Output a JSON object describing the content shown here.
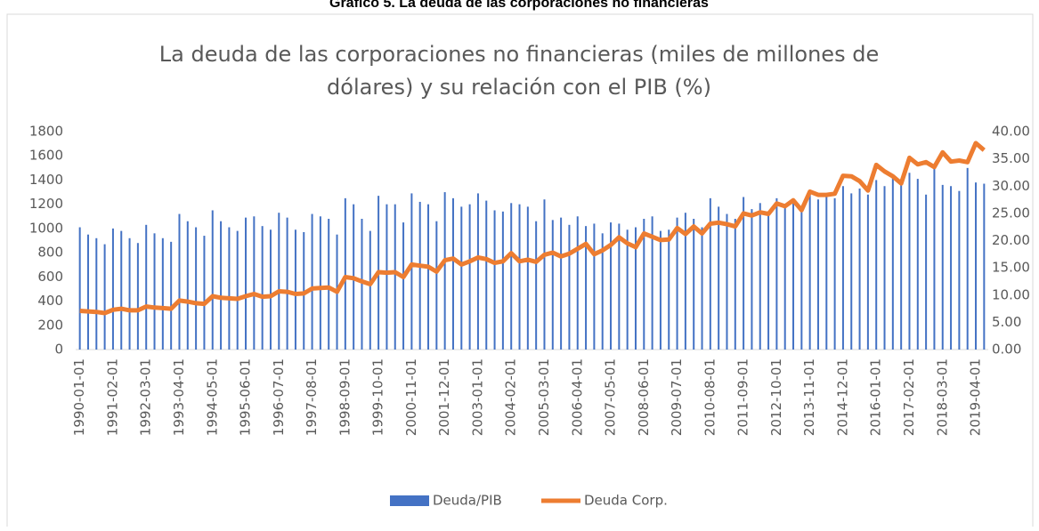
{
  "chart_data": {
    "type": "bar_line",
    "caption": "Gráfico 5. La deuda de las corporaciones no financieras",
    "title": [
      "La deuda de las corporaciones no financieras (miles de millones de",
      "dólares) y su relación con el PIB (%)"
    ],
    "categories": [
      "1990-01-01",
      null,
      null,
      null,
      "1991-02-01",
      null,
      null,
      null,
      "1992-03-01",
      null,
      null,
      null,
      "1993-04-01",
      null,
      null,
      null,
      "1994-05-01",
      null,
      null,
      null,
      "1995-06-01",
      null,
      null,
      null,
      "1996-07-01",
      null,
      null,
      null,
      "1997-08-01",
      null,
      null,
      null,
      "1998-09-01",
      null,
      null,
      null,
      "1999-10-01",
      null,
      null,
      null,
      "2000-11-01",
      null,
      null,
      null,
      "2001-12-01",
      null,
      null,
      null,
      "2003-01-01",
      null,
      null,
      null,
      "2004-02-01",
      null,
      null,
      null,
      "2005-03-01",
      null,
      null,
      null,
      "2006-04-01",
      null,
      null,
      null,
      "2007-05-01",
      null,
      null,
      null,
      "2008-06-01",
      null,
      null,
      null,
      "2009-07-01",
      null,
      null,
      null,
      "2010-08-01",
      null,
      null,
      null,
      "2011-09-01",
      null,
      null,
      null,
      "2012-10-01",
      null,
      null,
      null,
      "2013-11-01",
      null,
      null,
      null,
      "2014-12-01",
      null,
      null,
      null,
      "2016-01-01",
      null,
      null,
      null,
      "2017-02-01",
      null,
      null,
      null,
      "2018-03-01",
      null,
      null,
      null,
      "2019-04-01",
      null
    ],
    "series": [
      {
        "name": "Deuda/PIB",
        "color": "#4472c4",
        "kind": "bar",
        "values": [
          1010,
          950,
          920,
          870,
          1000,
          980,
          920,
          880,
          1030,
          960,
          920,
          890,
          1120,
          1060,
          1010,
          940,
          1150,
          1060,
          1010,
          980,
          1090,
          1100,
          1020,
          990,
          1130,
          1090,
          990,
          970,
          1120,
          1100,
          1080,
          950,
          1250,
          1200,
          1080,
          980,
          1270,
          1200,
          1200,
          1050,
          1290,
          1220,
          1200,
          1060,
          1300,
          1250,
          1180,
          1200,
          1290,
          1230,
          1150,
          1140,
          1210,
          1200,
          1180,
          1060,
          1240,
          1070,
          1090,
          1030,
          1100,
          1020,
          1040,
          960,
          1050,
          1040,
          990,
          1010,
          1080,
          1100,
          980,
          990,
          1090,
          1130,
          1080,
          1010,
          1250,
          1180,
          1120,
          1080,
          1260,
          1160,
          1210,
          1120,
          1250,
          1200,
          1210,
          1150,
          1290,
          1240,
          1260,
          1250,
          1350,
          1290,
          1330,
          1280,
          1400,
          1350,
          1420,
          1370,
          1460,
          1410,
          1280,
          1500,
          1360,
          1350,
          1310,
          1500,
          1380,
          1370
        ]
      },
      {
        "name": "Deuda Corp.",
        "color": "#ed7d31",
        "kind": "line",
        "axis": "y2",
        "values": [
          7.1,
          7.0,
          6.9,
          6.7,
          7.3,
          7.5,
          7.2,
          7.2,
          7.9,
          7.7,
          7.6,
          7.5,
          9.0,
          8.8,
          8.5,
          8.4,
          9.8,
          9.5,
          9.4,
          9.3,
          9.8,
          10.2,
          9.7,
          9.8,
          10.7,
          10.6,
          10.2,
          10.3,
          11.2,
          11.3,
          11.4,
          10.6,
          13.3,
          13.1,
          12.5,
          12.0,
          14.2,
          14.1,
          14.2,
          13.3,
          15.6,
          15.4,
          15.2,
          14.3,
          16.4,
          16.7,
          15.6,
          16.2,
          16.9,
          16.6,
          15.9,
          16.2,
          17.7,
          16.2,
          16.5,
          16.1,
          17.4,
          17.8,
          17.1,
          17.6,
          18.5,
          19.4,
          17.5,
          18.2,
          19.2,
          20.6,
          19.5,
          18.8,
          21.3,
          20.7,
          20.1,
          20.2,
          22.3,
          21.2,
          22.6,
          21.3,
          23.1,
          23.3,
          23.0,
          22.6,
          25.0,
          24.6,
          25.2,
          24.9,
          26.8,
          26.3,
          27.4,
          25.6,
          29.0,
          28.4,
          28.4,
          28.6,
          31.9,
          31.8,
          30.9,
          29.2,
          33.9,
          32.7,
          31.8,
          30.5,
          35.2,
          34.0,
          34.4,
          33.5,
          36.2,
          34.5,
          34.7,
          34.4,
          37.9,
          36.6
        ]
      }
    ],
    "ylim": [
      0,
      1800
    ],
    "yticks": [
      0,
      200,
      400,
      600,
      800,
      1000,
      1200,
      1400,
      1600,
      1800
    ],
    "y2lim": [
      0,
      40
    ],
    "y2ticks": [
      {
        "value": 0,
        "label": "0.00"
      },
      {
        "value": 5,
        "label": "5.00"
      },
      {
        "value": 10,
        "label": "10.00"
      },
      {
        "value": 15,
        "label": "15.00"
      },
      {
        "value": 20,
        "label": "20.00"
      },
      {
        "value": 25,
        "label": "25.00"
      },
      {
        "value": 30,
        "label": "30.00"
      },
      {
        "value": 35,
        "label": "35.00"
      },
      {
        "value": 40,
        "label": "40.00"
      }
    ],
    "legend": "bottom"
  }
}
